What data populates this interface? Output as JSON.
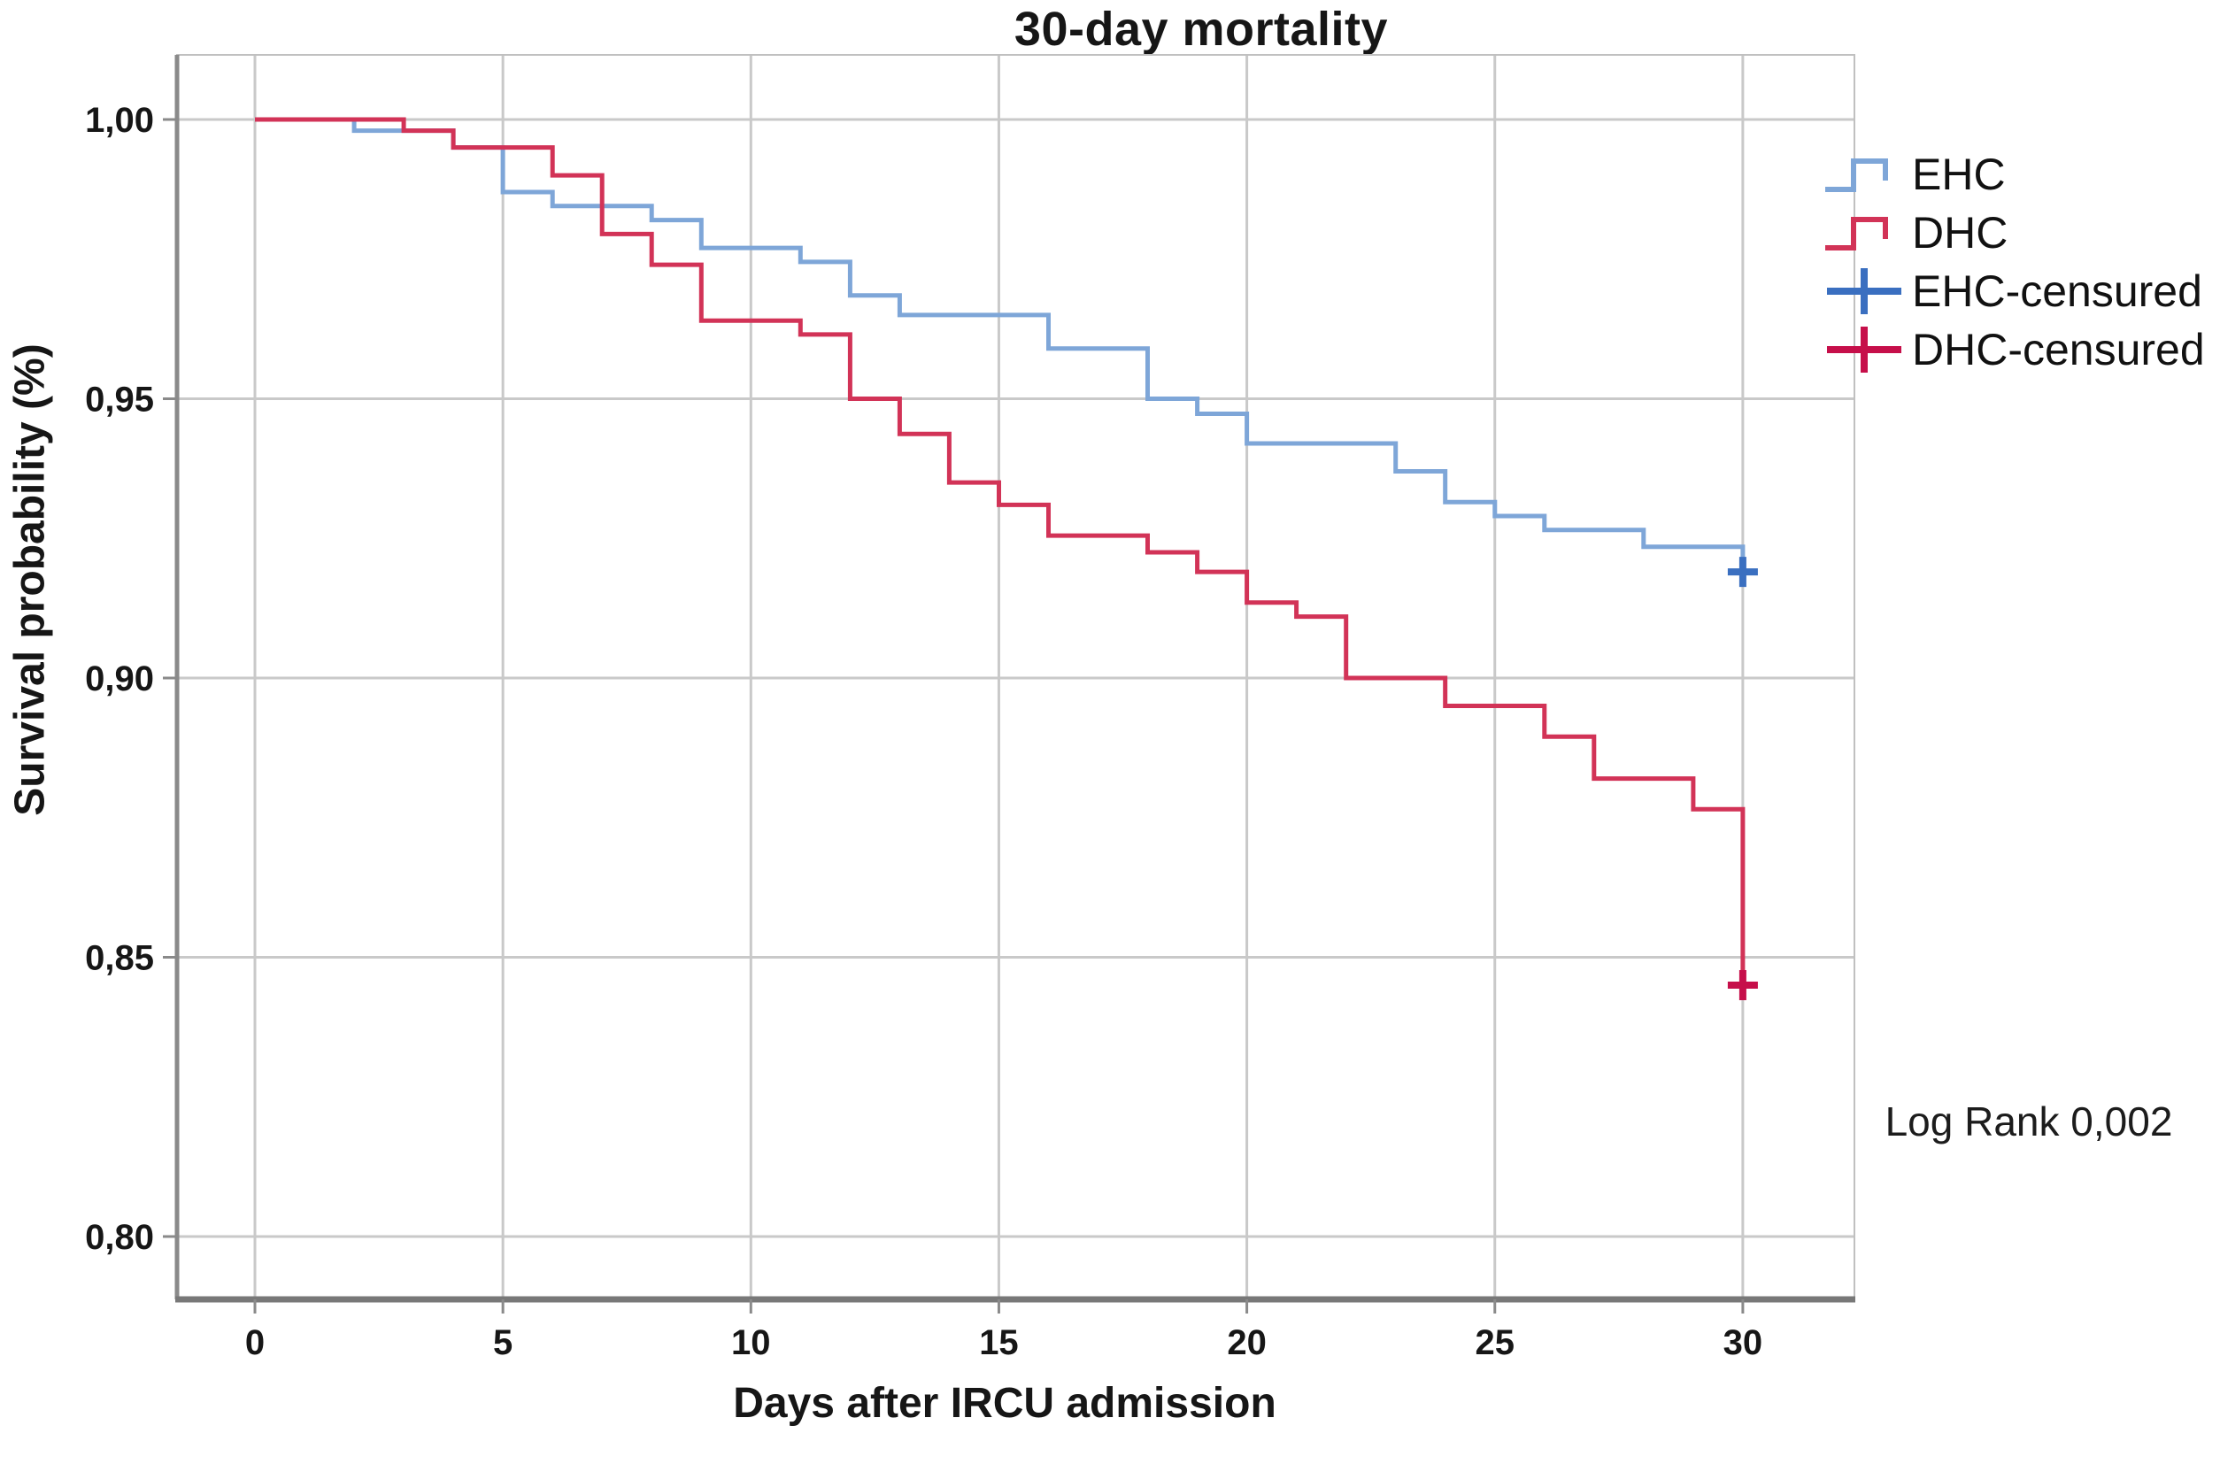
{
  "title": "30-day mortality",
  "annotation": "Log Rank 0,002",
  "legend": {
    "items": [
      {
        "label": "EHC",
        "type": "step",
        "color": "#7ea6d8"
      },
      {
        "label": "DHC",
        "type": "step",
        "color": "#d23357"
      },
      {
        "label": "EHC-censured",
        "type": "plus",
        "color": "#3a6fc0"
      },
      {
        "label": "DHC-censured",
        "type": "plus",
        "color": "#c60f4a"
      }
    ]
  },
  "chart_data": {
    "type": "line",
    "subtype": "kaplan-meier-step",
    "title": "30-day mortality",
    "xlabel": "Days after IRCU admission",
    "ylabel": "Survival probability (%)",
    "annotation": "Log Rank 0,002",
    "grid": true,
    "legend_position": "right",
    "xlim": [
      -1.6,
      32.3
    ],
    "ylim": [
      0.788,
      1.012
    ],
    "x_ticks": [
      0,
      5,
      10,
      15,
      20,
      25,
      30
    ],
    "y_ticks": [
      1.0,
      0.95,
      0.9,
      0.85,
      0.8
    ],
    "y_tick_labels": [
      "1,00",
      "0,95",
      "0,90",
      "0,85",
      "0,80"
    ],
    "style": {
      "grid_color": "#c9c9c9",
      "frame_color": "#c0c0c0",
      "axis_color": "#8a8a8a",
      "axis_bottom_color": "#787878",
      "text_color": "#161616"
    },
    "series": [
      {
        "name": "EHC",
        "color": "#7ea6d8",
        "censor_color": "#3a6fc0",
        "points": [
          [
            0,
            1.0
          ],
          [
            2,
            0.998
          ],
          [
            4,
            0.995
          ],
          [
            5,
            0.987
          ],
          [
            6,
            0.9845
          ],
          [
            8,
            0.982
          ],
          [
            9,
            0.977
          ],
          [
            11,
            0.9745
          ],
          [
            12,
            0.9685
          ],
          [
            13,
            0.965
          ],
          [
            16,
            0.959
          ],
          [
            18,
            0.95
          ],
          [
            19,
            0.9473
          ],
          [
            20,
            0.942
          ],
          [
            23,
            0.937
          ],
          [
            24,
            0.9315
          ],
          [
            25,
            0.929
          ],
          [
            26,
            0.9265
          ],
          [
            28,
            0.9235
          ],
          [
            30,
            0.919
          ]
        ],
        "censored": [
          [
            30,
            0.919
          ]
        ]
      },
      {
        "name": "DHC",
        "color": "#d23357",
        "censor_color": "#c60f4a",
        "points": [
          [
            0,
            1.0
          ],
          [
            3,
            0.998
          ],
          [
            4,
            0.995
          ],
          [
            6,
            0.99
          ],
          [
            7,
            0.9795
          ],
          [
            8,
            0.974
          ],
          [
            9,
            0.964
          ],
          [
            11,
            0.9615
          ],
          [
            12,
            0.95
          ],
          [
            13,
            0.9437
          ],
          [
            14,
            0.935
          ],
          [
            15,
            0.931
          ],
          [
            16,
            0.9255
          ],
          [
            18,
            0.9225
          ],
          [
            19,
            0.919
          ],
          [
            20,
            0.9135
          ],
          [
            21,
            0.911
          ],
          [
            22,
            0.9
          ],
          [
            24,
            0.895
          ],
          [
            26,
            0.8895
          ],
          [
            27,
            0.882
          ],
          [
            29,
            0.8765
          ],
          [
            30,
            0.845
          ]
        ],
        "censored": [
          [
            30,
            0.845
          ]
        ]
      }
    ]
  }
}
